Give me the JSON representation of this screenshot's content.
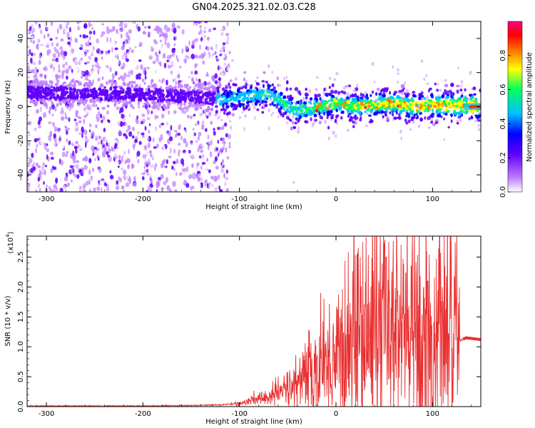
{
  "title": "GN04.2025.321.02.03.C28",
  "chart_data": [
    {
      "type": "heatmap",
      "title": "",
      "xlabel": "Height of straight line (km)",
      "ylabel": "Frequency (Hz)",
      "xlim": [
        -320,
        150
      ],
      "ylim": [
        -50,
        50
      ],
      "xticks": [
        -300,
        -200,
        -100,
        0,
        100
      ],
      "yticks": [
        -40,
        -20,
        0,
        20,
        40
      ],
      "colorbar": {
        "label": "Normalized spectral amplitude",
        "range": [
          0.0,
          1.0
        ],
        "ticks": [
          0.0,
          0.2,
          0.4,
          0.6,
          0.8
        ],
        "colors": [
          "#ffffff",
          "#c080ff",
          "#6000ff",
          "#0000ff",
          "#00c0ff",
          "#00ff60",
          "#ffff00",
          "#ff8000",
          "#ff0000",
          "#ff0080"
        ]
      },
      "ridge": {
        "description_points": [
          {
            "x": -320,
            "y": 8
          },
          {
            "x": -250,
            "y": 8
          },
          {
            "x": -200,
            "y": 7
          },
          {
            "x": -150,
            "y": 6
          },
          {
            "x": -120,
            "y": 4
          },
          {
            "x": -90,
            "y": 6
          },
          {
            "x": -70,
            "y": 8
          },
          {
            "x": -50,
            "y": 0
          },
          {
            "x": -40,
            "y": -2
          },
          {
            "x": -20,
            "y": 0
          },
          {
            "x": 0,
            "y": 2
          },
          {
            "x": 20,
            "y": 0
          },
          {
            "x": 40,
            "y": 1
          },
          {
            "x": 60,
            "y": 2
          },
          {
            "x": 80,
            "y": 0
          },
          {
            "x": 100,
            "y": 1
          },
          {
            "x": 120,
            "y": 1
          },
          {
            "x": 150,
            "y": 0
          }
        ],
        "noise_region_end": -125
      }
    },
    {
      "type": "line",
      "title": "",
      "xlabel": "Height of straight line (km)",
      "ylabel": "SNR (10 * v/v)",
      "y_multiplier": "(x10^4)",
      "y_multiplier_base": "(x10",
      "y_multiplier_exp": "4",
      "y_multiplier_close": ")",
      "xlim": [
        -320,
        150
      ],
      "ylim": [
        0.0,
        2.85
      ],
      "xticks": [
        -300,
        -200,
        -100,
        0,
        100
      ],
      "yticks": [
        0.0,
        0.5,
        1.0,
        1.5,
        2.0,
        2.5
      ],
      "ytick_labels": [
        "0.0",
        "0.5",
        "1.0",
        "1.5",
        "2.0",
        "2.5"
      ],
      "color": "#e83030",
      "envelope": [
        {
          "x": -320,
          "y": 0.01
        },
        {
          "x": -200,
          "y": 0.01
        },
        {
          "x": -150,
          "y": 0.02
        },
        {
          "x": -120,
          "y": 0.03
        },
        {
          "x": -100,
          "y": 0.05
        },
        {
          "x": -80,
          "y": 0.12
        },
        {
          "x": -60,
          "y": 0.22
        },
        {
          "x": -40,
          "y": 0.4
        },
        {
          "x": -20,
          "y": 0.6
        },
        {
          "x": 0,
          "y": 0.85
        },
        {
          "x": 20,
          "y": 1.05
        },
        {
          "x": 40,
          "y": 1.15
        },
        {
          "x": 60,
          "y": 1.2
        },
        {
          "x": 80,
          "y": 1.15
        },
        {
          "x": 100,
          "y": 1.1
        },
        {
          "x": 120,
          "y": 1.05
        },
        {
          "x": 135,
          "y": 1.15
        },
        {
          "x": 150,
          "y": 1.12
        }
      ],
      "peaks": [
        {
          "x": 22,
          "y": 2.55
        },
        {
          "x": 42,
          "y": 2.85
        },
        {
          "x": 52,
          "y": 2.5
        },
        {
          "x": 78,
          "y": 2.35
        },
        {
          "x": 95,
          "y": 2.1
        },
        {
          "x": 118,
          "y": 1.85
        }
      ]
    }
  ]
}
